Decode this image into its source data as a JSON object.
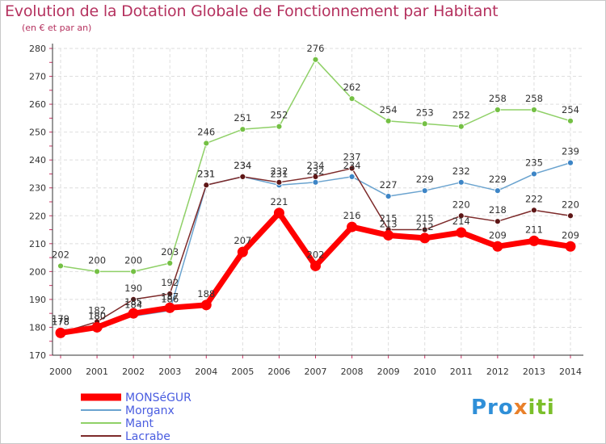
{
  "chart_data": {
    "type": "line",
    "title": "Evolution de la Dotation Globale de Fonctionnement par Habitant",
    "subtitle": "(en € et par an)",
    "xlabel": "",
    "ylabel": "",
    "ylim": [
      170,
      280
    ],
    "yticks": [
      170,
      180,
      190,
      200,
      210,
      220,
      230,
      240,
      250,
      260,
      270,
      280
    ],
    "categories": [
      "2000",
      "2001",
      "2002",
      "2003",
      "2004",
      "2005",
      "2006",
      "2007",
      "2008",
      "2009",
      "2010",
      "2011",
      "2012",
      "2013",
      "2014"
    ],
    "grid": true,
    "legend_position": "bottom-left",
    "series": [
      {
        "name": "MONSéGUR",
        "color": "#ff0000",
        "marker": "#ff0000",
        "emphasis": true,
        "values": [
          178,
          180,
          185,
          187,
          188,
          207,
          221,
          202,
          216,
          213,
          212,
          214,
          209,
          211,
          209
        ]
      },
      {
        "name": "Morganx",
        "color": "#6aa3cf",
        "marker": "#3d85c6",
        "emphasis": false,
        "values": [
          179,
          180,
          184,
          186,
          231,
          234,
          231,
          232,
          234,
          227,
          229,
          232,
          229,
          235,
          239
        ]
      },
      {
        "name": "Mant",
        "color": "#8fd067",
        "marker": "#74c044",
        "emphasis": false,
        "values": [
          202,
          200,
          200,
          203,
          246,
          251,
          252,
          276,
          262,
          254,
          253,
          252,
          258,
          258,
          254
        ]
      },
      {
        "name": "Lacrabe",
        "color": "#7d2a2a",
        "marker": "#5e1616",
        "emphasis": false,
        "values": [
          178,
          182,
          190,
          192,
          231,
          234,
          232,
          234,
          237,
          215,
          215,
          220,
          218,
          222,
          220
        ]
      }
    ]
  },
  "brand": {
    "part1": "Pro",
    "part2": "x",
    "part3": "iti"
  }
}
